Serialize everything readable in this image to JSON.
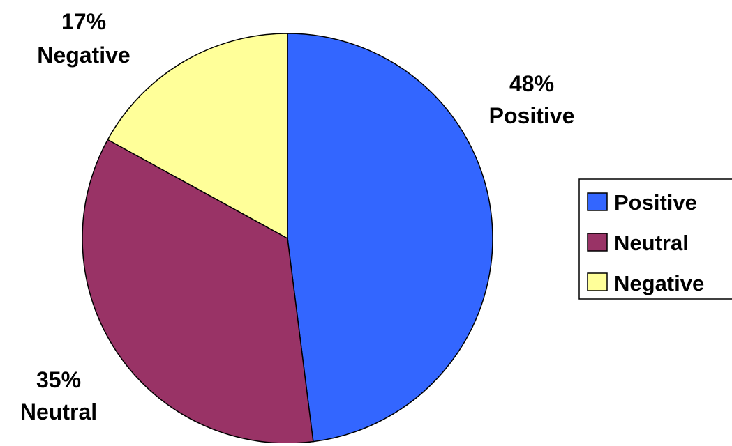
{
  "chart_data": {
    "type": "pie",
    "title": "",
    "categories": [
      "Positive",
      "Neutral",
      "Negative"
    ],
    "values": [
      48,
      35,
      17
    ],
    "unit": "%",
    "colors": [
      "#3366FF",
      "#993366",
      "#FFFF99"
    ],
    "data_labels": [
      {
        "percent": "48%",
        "name": "Positive"
      },
      {
        "percent": "35%",
        "name": "Neutral"
      },
      {
        "percent": "17%",
        "name": "Negative"
      }
    ],
    "legend": {
      "placement": "right",
      "entries": [
        "Positive",
        "Neutral",
        "Negative"
      ]
    },
    "start_angle": "12 o'clock",
    "direction": "clockwise"
  }
}
